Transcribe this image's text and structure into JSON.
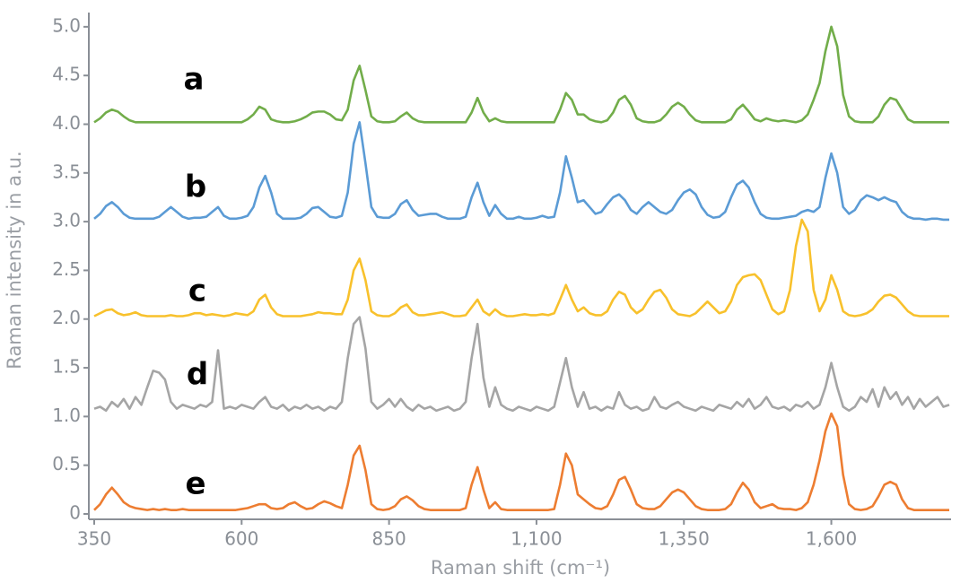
{
  "chart_data": {
    "type": "line",
    "x_label": "Raman shift (cm⁻¹)",
    "y_label": "Raman intensity in a.u.",
    "xlim": [
      350,
      1800
    ],
    "ylim": [
      0,
      5.1
    ],
    "xticks": [
      350,
      600,
      850,
      {
        "value": 1100,
        "label": "1,100"
      },
      {
        "value": 1350,
        "label": "1,350"
      },
      {
        "value": 1600,
        "label": "1,600"
      }
    ],
    "yticks": [
      0,
      0.5,
      {
        "value": 1,
        "label": "1.0"
      },
      1.5,
      {
        "value": 2,
        "label": "2.0"
      },
      2.5,
      {
        "value": 3,
        "label": "3.0"
      },
      3.5,
      {
        "value": 4,
        "label": "4.0"
      },
      4.5,
      {
        "value": 5,
        "label": "5.0"
      }
    ],
    "grid": false,
    "x": [
      350,
      360,
      370,
      380,
      390,
      400,
      410,
      420,
      430,
      440,
      450,
      460,
      470,
      480,
      490,
      500,
      510,
      520,
      530,
      540,
      550,
      560,
      570,
      580,
      590,
      600,
      610,
      620,
      630,
      640,
      650,
      660,
      670,
      680,
      690,
      700,
      710,
      720,
      730,
      740,
      750,
      760,
      770,
      780,
      790,
      800,
      810,
      820,
      830,
      840,
      850,
      860,
      870,
      880,
      890,
      900,
      910,
      920,
      930,
      940,
      950,
      960,
      970,
      980,
      990,
      1000,
      1010,
      1020,
      1030,
      1040,
      1050,
      1060,
      1070,
      1080,
      1090,
      1100,
      1110,
      1120,
      1130,
      1140,
      1150,
      1160,
      1170,
      1180,
      1190,
      1200,
      1210,
      1220,
      1230,
      1240,
      1250,
      1260,
      1270,
      1280,
      1290,
      1300,
      1310,
      1320,
      1330,
      1340,
      1350,
      1360,
      1370,
      1380,
      1390,
      1400,
      1410,
      1420,
      1430,
      1440,
      1450,
      1460,
      1470,
      1480,
      1490,
      1500,
      1510,
      1520,
      1530,
      1540,
      1550,
      1560,
      1570,
      1580,
      1590,
      1600,
      1610,
      1620,
      1630,
      1640,
      1650,
      1660,
      1670,
      1680,
      1690,
      1700,
      1710,
      1720,
      1730,
      1740,
      1750,
      1760,
      1770,
      1780,
      1790,
      1800
    ],
    "series": [
      {
        "name": "a",
        "color": "#72ad4a",
        "values": [
          4.02,
          4.06,
          4.12,
          4.15,
          4.13,
          4.08,
          4.04,
          4.02,
          4.02,
          4.02,
          4.02,
          4.02,
          4.02,
          4.02,
          4.02,
          4.02,
          4.02,
          4.02,
          4.02,
          4.02,
          4.02,
          4.02,
          4.02,
          4.02,
          4.02,
          4.02,
          4.05,
          4.1,
          4.18,
          4.15,
          4.05,
          4.03,
          4.02,
          4.02,
          4.03,
          4.05,
          4.08,
          4.12,
          4.13,
          4.13,
          4.1,
          4.05,
          4.04,
          4.15,
          4.45,
          4.6,
          4.35,
          4.08,
          4.03,
          4.02,
          4.02,
          4.03,
          4.08,
          4.12,
          4.06,
          4.03,
          4.02,
          4.02,
          4.02,
          4.02,
          4.02,
          4.02,
          4.02,
          4.02,
          4.12,
          4.27,
          4.12,
          4.03,
          4.06,
          4.03,
          4.02,
          4.02,
          4.02,
          4.02,
          4.02,
          4.02,
          4.02,
          4.02,
          4.02,
          4.15,
          4.32,
          4.25,
          4.1,
          4.1,
          4.05,
          4.03,
          4.02,
          4.04,
          4.12,
          4.25,
          4.29,
          4.2,
          4.06,
          4.03,
          4.02,
          4.02,
          4.04,
          4.1,
          4.18,
          4.22,
          4.18,
          4.1,
          4.04,
          4.02,
          4.02,
          4.02,
          4.02,
          4.02,
          4.05,
          4.15,
          4.2,
          4.13,
          4.05,
          4.03,
          4.06,
          4.04,
          4.03,
          4.04,
          4.03,
          4.02,
          4.04,
          4.1,
          4.25,
          4.42,
          4.75,
          5.0,
          4.8,
          4.3,
          4.08,
          4.03,
          4.02,
          4.02,
          4.02,
          4.08,
          4.2,
          4.27,
          4.25,
          4.15,
          4.05,
          4.02,
          4.02,
          4.02,
          4.02,
          4.02,
          4.02,
          4.02
        ]
      },
      {
        "name": "b",
        "color": "#5b9bd5",
        "values": [
          3.03,
          3.08,
          3.16,
          3.2,
          3.15,
          3.08,
          3.04,
          3.03,
          3.03,
          3.03,
          3.03,
          3.05,
          3.1,
          3.15,
          3.1,
          3.05,
          3.03,
          3.04,
          3.04,
          3.05,
          3.1,
          3.15,
          3.06,
          3.03,
          3.03,
          3.04,
          3.06,
          3.15,
          3.35,
          3.47,
          3.3,
          3.08,
          3.03,
          3.03,
          3.03,
          3.04,
          3.08,
          3.14,
          3.15,
          3.1,
          3.05,
          3.04,
          3.06,
          3.3,
          3.8,
          4.02,
          3.6,
          3.15,
          3.05,
          3.04,
          3.04,
          3.08,
          3.18,
          3.22,
          3.12,
          3.06,
          3.07,
          3.08,
          3.08,
          3.05,
          3.03,
          3.03,
          3.03,
          3.05,
          3.25,
          3.4,
          3.2,
          3.06,
          3.17,
          3.08,
          3.03,
          3.03,
          3.05,
          3.03,
          3.03,
          3.04,
          3.06,
          3.04,
          3.05,
          3.3,
          3.67,
          3.45,
          3.2,
          3.22,
          3.15,
          3.08,
          3.1,
          3.18,
          3.25,
          3.28,
          3.22,
          3.12,
          3.08,
          3.15,
          3.2,
          3.15,
          3.1,
          3.08,
          3.12,
          3.22,
          3.3,
          3.33,
          3.28,
          3.15,
          3.07,
          3.04,
          3.05,
          3.1,
          3.25,
          3.38,
          3.42,
          3.35,
          3.2,
          3.08,
          3.04,
          3.03,
          3.03,
          3.04,
          3.05,
          3.06,
          3.1,
          3.12,
          3.1,
          3.15,
          3.45,
          3.7,
          3.5,
          3.15,
          3.08,
          3.12,
          3.22,
          3.27,
          3.25,
          3.22,
          3.25,
          3.22,
          3.2,
          3.1,
          3.05,
          3.03,
          3.03,
          3.02,
          3.03,
          3.03,
          3.02,
          3.02
        ]
      },
      {
        "name": "c",
        "color": "#f8c12c",
        "values": [
          2.03,
          2.06,
          2.09,
          2.1,
          2.06,
          2.04,
          2.05,
          2.07,
          2.04,
          2.03,
          2.03,
          2.03,
          2.03,
          2.04,
          2.03,
          2.03,
          2.04,
          2.06,
          2.06,
          2.04,
          2.05,
          2.04,
          2.03,
          2.04,
          2.06,
          2.05,
          2.04,
          2.08,
          2.2,
          2.25,
          2.12,
          2.05,
          2.03,
          2.03,
          2.03,
          2.03,
          2.04,
          2.05,
          2.07,
          2.06,
          2.06,
          2.05,
          2.05,
          2.2,
          2.5,
          2.62,
          2.4,
          2.08,
          2.04,
          2.03,
          2.03,
          2.06,
          2.12,
          2.15,
          2.07,
          2.04,
          2.04,
          2.05,
          2.06,
          2.07,
          2.05,
          2.03,
          2.03,
          2.04,
          2.12,
          2.2,
          2.08,
          2.04,
          2.1,
          2.05,
          2.03,
          2.03,
          2.04,
          2.05,
          2.04,
          2.04,
          2.05,
          2.04,
          2.06,
          2.2,
          2.35,
          2.2,
          2.08,
          2.12,
          2.06,
          2.04,
          2.04,
          2.08,
          2.2,
          2.28,
          2.25,
          2.12,
          2.06,
          2.1,
          2.2,
          2.28,
          2.3,
          2.22,
          2.1,
          2.05,
          2.04,
          2.03,
          2.06,
          2.12,
          2.18,
          2.12,
          2.06,
          2.08,
          2.18,
          2.35,
          2.43,
          2.45,
          2.46,
          2.4,
          2.25,
          2.1,
          2.05,
          2.08,
          2.3,
          2.75,
          3.02,
          2.9,
          2.3,
          2.08,
          2.2,
          2.45,
          2.3,
          2.08,
          2.04,
          2.03,
          2.04,
          2.06,
          2.1,
          2.18,
          2.24,
          2.25,
          2.22,
          2.15,
          2.08,
          2.04,
          2.03,
          2.03,
          2.03,
          2.03,
          2.03,
          2.03
        ]
      },
      {
        "name": "d",
        "color": "#a5a5a5",
        "values": [
          1.08,
          1.1,
          1.06,
          1.15,
          1.1,
          1.18,
          1.08,
          1.2,
          1.12,
          1.3,
          1.47,
          1.45,
          1.38,
          1.15,
          1.08,
          1.12,
          1.1,
          1.08,
          1.12,
          1.1,
          1.15,
          1.68,
          1.08,
          1.1,
          1.08,
          1.12,
          1.1,
          1.08,
          1.15,
          1.2,
          1.1,
          1.08,
          1.12,
          1.06,
          1.1,
          1.08,
          1.12,
          1.08,
          1.1,
          1.06,
          1.1,
          1.08,
          1.15,
          1.6,
          1.95,
          2.02,
          1.7,
          1.15,
          1.08,
          1.12,
          1.18,
          1.1,
          1.18,
          1.1,
          1.06,
          1.12,
          1.08,
          1.1,
          1.06,
          1.08,
          1.1,
          1.06,
          1.08,
          1.15,
          1.6,
          1.95,
          1.4,
          1.1,
          1.3,
          1.12,
          1.08,
          1.06,
          1.1,
          1.08,
          1.06,
          1.1,
          1.08,
          1.06,
          1.1,
          1.35,
          1.6,
          1.3,
          1.1,
          1.25,
          1.08,
          1.1,
          1.06,
          1.1,
          1.08,
          1.25,
          1.12,
          1.08,
          1.1,
          1.06,
          1.08,
          1.2,
          1.1,
          1.08,
          1.12,
          1.15,
          1.1,
          1.08,
          1.06,
          1.1,
          1.08,
          1.06,
          1.12,
          1.1,
          1.08,
          1.15,
          1.1,
          1.18,
          1.08,
          1.12,
          1.2,
          1.1,
          1.08,
          1.1,
          1.06,
          1.12,
          1.1,
          1.15,
          1.08,
          1.12,
          1.3,
          1.55,
          1.3,
          1.1,
          1.06,
          1.1,
          1.2,
          1.15,
          1.28,
          1.1,
          1.3,
          1.18,
          1.25,
          1.12,
          1.2,
          1.08,
          1.18,
          1.1,
          1.15,
          1.2,
          1.1,
          1.12
        ]
      },
      {
        "name": "e",
        "color": "#ed7d31",
        "values": [
          0.04,
          0.1,
          0.2,
          0.27,
          0.2,
          0.12,
          0.08,
          0.06,
          0.05,
          0.04,
          0.05,
          0.04,
          0.05,
          0.04,
          0.04,
          0.05,
          0.04,
          0.04,
          0.04,
          0.04,
          0.04,
          0.04,
          0.04,
          0.04,
          0.04,
          0.05,
          0.06,
          0.08,
          0.1,
          0.1,
          0.06,
          0.05,
          0.06,
          0.1,
          0.12,
          0.08,
          0.05,
          0.06,
          0.1,
          0.13,
          0.11,
          0.08,
          0.06,
          0.3,
          0.6,
          0.7,
          0.45,
          0.1,
          0.05,
          0.04,
          0.05,
          0.08,
          0.15,
          0.18,
          0.14,
          0.08,
          0.05,
          0.04,
          0.04,
          0.04,
          0.04,
          0.04,
          0.04,
          0.06,
          0.3,
          0.48,
          0.25,
          0.06,
          0.12,
          0.05,
          0.04,
          0.04,
          0.04,
          0.04,
          0.04,
          0.04,
          0.04,
          0.04,
          0.05,
          0.3,
          0.62,
          0.5,
          0.2,
          0.15,
          0.1,
          0.06,
          0.05,
          0.08,
          0.2,
          0.35,
          0.38,
          0.25,
          0.1,
          0.06,
          0.05,
          0.05,
          0.08,
          0.15,
          0.22,
          0.25,
          0.22,
          0.15,
          0.08,
          0.05,
          0.04,
          0.04,
          0.04,
          0.05,
          0.1,
          0.22,
          0.32,
          0.25,
          0.12,
          0.06,
          0.08,
          0.1,
          0.06,
          0.05,
          0.05,
          0.04,
          0.06,
          0.12,
          0.3,
          0.55,
          0.85,
          1.03,
          0.9,
          0.4,
          0.1,
          0.05,
          0.04,
          0.05,
          0.08,
          0.18,
          0.3,
          0.33,
          0.3,
          0.15,
          0.06,
          0.04,
          0.04,
          0.04,
          0.04,
          0.04,
          0.04,
          0.04
        ]
      }
    ]
  }
}
